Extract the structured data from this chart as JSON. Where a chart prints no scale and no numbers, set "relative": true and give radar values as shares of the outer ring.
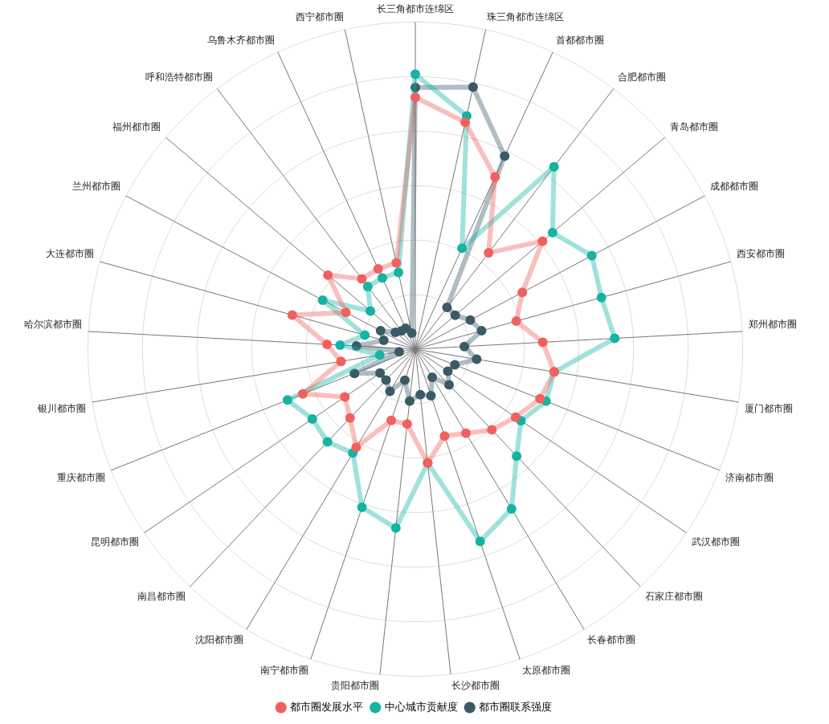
{
  "chart_data": {
    "type": "radar",
    "relative": true,
    "grid": true,
    "legend": "bottom",
    "marker": "circle",
    "categories": [
      "长三角都市连绵区",
      "珠三角都市连绵区",
      "首都都市圈",
      "合肥都市圈",
      "青岛都市圈",
      "成都都市圈",
      "西安都市圈",
      "郑州都市圈",
      "厦门都市圈",
      "济南都市圈",
      "武汉都市圈",
      "石家庄都市圈",
      "长春都市圈",
      "太原都市圈",
      "长沙都市圈",
      "贵阳都市圈",
      "南宁都市圈",
      "沈阳都市圈",
      "南昌都市圈",
      "昆明都市圈",
      "重庆都市圈",
      "银川都市圈",
      "哈尔滨都市圈",
      "大连都市圈",
      "兰州都市圈",
      "福州都市圈",
      "呼和浩特都市圈",
      "乌鲁木齐都市圈",
      "西宁都市圈"
    ],
    "series": [
      {
        "name": "都市圈发展水平",
        "color": "#f0605d",
        "values": [
          0.77,
          0.71,
          0.58,
          0.37,
          0.51,
          0.37,
          0.32,
          0.39,
          0.43,
          0.41,
          0.37,
          0.34,
          0.3,
          0.28,
          0.35,
          0.23,
          0.23,
          0.35,
          0.29,
          0.26,
          0.37,
          0.23,
          0.27,
          0.39,
          0.24,
          0.35,
          0.27,
          0.27,
          0.27
        ]
      },
      {
        "name": "中心城市贡献度",
        "color": "#14b3a4",
        "values": [
          0.84,
          0.73,
          0.34,
          0.7,
          0.55,
          0.61,
          0.59,
          0.61,
          0.43,
          0.43,
          0.39,
          0.45,
          0.57,
          0.62,
          0.35,
          0.55,
          0.51,
          0.37,
          0.39,
          0.38,
          0.42,
          0.11,
          0.23,
          0.16,
          0.32,
          0.18,
          0.24,
          0.24,
          0.24
        ]
      },
      {
        "name": "都市圈联系强度",
        "color": "#3a5a66",
        "values": [
          0.8,
          0.82,
          0.65,
          0.16,
          0.16,
          0.19,
          0.21,
          0.15,
          0.19,
          0.13,
          0.12,
          0.15,
          0.1,
          0.15,
          0.14,
          0.16,
          0.1,
          0.15,
          0.13,
          0.13,
          0.2,
          0.05,
          0.18,
          0.1,
          0.12,
          0.08,
          0.07,
          0.07,
          0.05
        ]
      }
    ]
  }
}
